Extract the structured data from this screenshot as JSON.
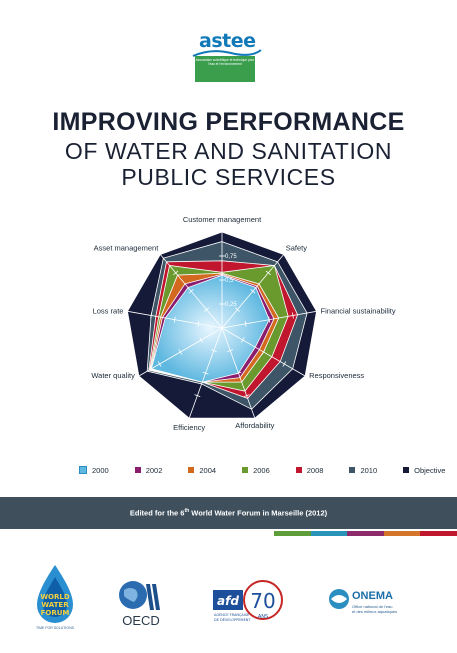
{
  "header": {
    "logo_text": "astee",
    "logo_tagline": "Association scientifique et technique pour l'eau et l'environnement"
  },
  "title": {
    "line1": "IMPROVING PERFORMANCE",
    "line2": "OF WATER AND SANITATION",
    "line3": "PUBLIC SERVICES"
  },
  "chart_data": {
    "type": "radar",
    "axes": [
      "Customer management",
      "Safety",
      "Financial sustainability",
      "Responsiveness",
      "Affordability",
      "Efficiency",
      "Water quality",
      "Loss rate",
      "Asset management"
    ],
    "tick_labels": [
      "0,25",
      "0,5",
      "0,75"
    ],
    "range": [
      0,
      1
    ],
    "series": [
      {
        "name": "2000",
        "color": "#5fb8e0",
        "values": [
          0.55,
          0.55,
          0.5,
          0.4,
          0.5,
          0.6,
          0.85,
          0.6,
          0.55
        ]
      },
      {
        "name": "2002",
        "color": "#8b1d6e",
        "values": [
          0.56,
          0.57,
          0.55,
          0.45,
          0.55,
          0.6,
          0.85,
          0.63,
          0.6
        ]
      },
      {
        "name": "2004",
        "color": "#d2691e",
        "values": [
          0.57,
          0.6,
          0.6,
          0.5,
          0.6,
          0.6,
          0.86,
          0.65,
          0.72
        ]
      },
      {
        "name": "2006",
        "color": "#6a9a2e",
        "values": [
          0.58,
          0.85,
          0.7,
          0.6,
          0.7,
          0.6,
          0.87,
          0.67,
          0.85
        ]
      },
      {
        "name": "2008",
        "color": "#c0172f",
        "values": [
          0.7,
          0.85,
          0.8,
          0.7,
          0.78,
          0.6,
          0.88,
          0.7,
          0.9
        ]
      },
      {
        "name": "2010",
        "color": "#3d5566",
        "values": [
          0.9,
          0.9,
          0.9,
          0.85,
          0.9,
          0.62,
          0.9,
          0.75,
          0.95
        ]
      },
      {
        "name": "Objective",
        "color": "#151a38",
        "values": [
          1,
          1,
          1,
          1,
          1,
          1,
          1,
          1,
          1
        ]
      }
    ]
  },
  "band": {
    "text_pre": "Edited for the 6",
    "text_sup": "th",
    "text_post": " World Water Forum in Marseille (2012)"
  },
  "strip_colors": [
    "#5d9e3a",
    "#2a93b8",
    "#8c2a6a",
    "#d4752a",
    "#c0172f"
  ],
  "logos": {
    "wwf_lines": [
      "WORLD",
      "WATER",
      "FORUM"
    ],
    "wwf_tagline": "TIME FOR SOLUTIONS",
    "oecd": "OECD",
    "afd_top": "afd",
    "afd_number": "70",
    "afd_sub1": "AGENCE FRANÇAISE",
    "afd_sub2": "DE DÉVELOPPEMENT",
    "afd_ans": "ANS",
    "onema": "ONEMA",
    "onema_sub1": "Office national de l'eau",
    "onema_sub2": "et des milieux aquatiques"
  }
}
